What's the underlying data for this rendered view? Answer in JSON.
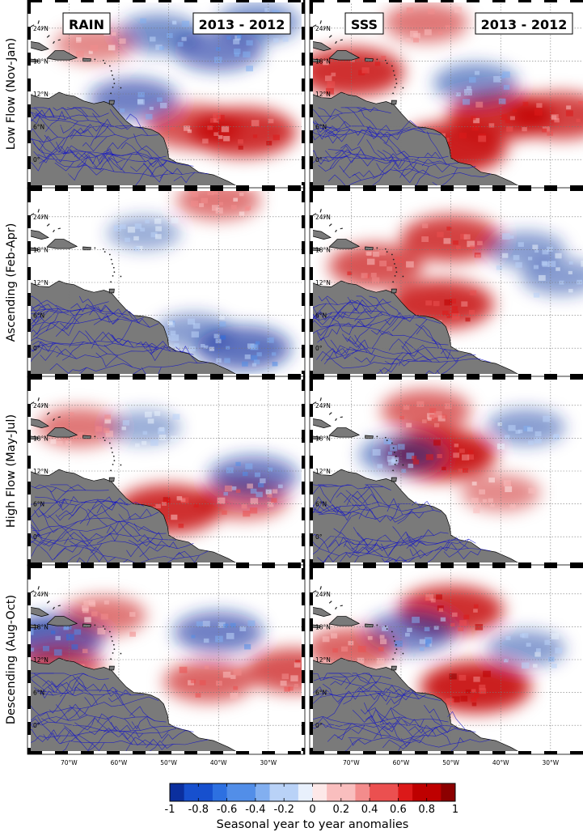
{
  "columns": [
    {
      "label": "RAIN",
      "period": "2013 - 2012"
    },
    {
      "label": "SSS",
      "period": "2013 - 2012"
    }
  ],
  "rows": [
    {
      "label": "Low Flow (Nov-Jan)"
    },
    {
      "label": "Ascending (Feb-Apr)"
    },
    {
      "label": "High Flow (May-Jul)"
    },
    {
      "label": "Descending (Aug-Oct)"
    }
  ],
  "map_axes": {
    "lon_range": [
      -78,
      -23
    ],
    "lat_range": [
      -5,
      29
    ],
    "lat_ticks": [
      {
        "v": 24,
        "label": "24°N"
      },
      {
        "v": 18,
        "label": "18°N"
      },
      {
        "v": 12,
        "label": "12°N"
      },
      {
        "v": 6,
        "label": "6°N"
      },
      {
        "v": 0,
        "label": "0°"
      }
    ],
    "lon_ticks": [
      {
        "v": -70,
        "label": "70°W"
      },
      {
        "v": -60,
        "label": "60°W"
      },
      {
        "v": -50,
        "label": "50°W"
      },
      {
        "v": -40,
        "label": "40°W"
      },
      {
        "v": -30,
        "label": "30°W"
      }
    ]
  },
  "colors": {
    "land": "#7a7a7a",
    "river": "#1414c8",
    "negative": "#0b2f9e",
    "positive": "#c40000"
  },
  "chart_data": {
    "type": "heatmap",
    "colorbar": {
      "min": -1,
      "max": 1,
      "ticks": [
        {
          "v": -1,
          "label": "-1"
        },
        {
          "v": -0.8,
          "label": "-0.8"
        },
        {
          "v": -0.6,
          "label": "-0.6"
        },
        {
          "v": -0.4,
          "label": "-0.4"
        },
        {
          "v": -0.2,
          "label": "-0.2"
        },
        {
          "v": 0,
          "label": "0"
        },
        {
          "v": 0.2,
          "label": "0.2"
        },
        {
          "v": 0.4,
          "label": "0.4"
        },
        {
          "v": 0.6,
          "label": "0.6"
        },
        {
          "v": 0.8,
          "label": "0.8"
        },
        {
          "v": 1,
          "label": "1"
        }
      ],
      "label": "Seasonal year to year anomalies"
    },
    "panels": [
      {
        "row": 0,
        "col": 0,
        "anomalies": [
          {
            "lon": -35,
            "lat": 5,
            "value": 0.8
          },
          {
            "lon": -45,
            "lat": 6,
            "value": 0.6
          },
          {
            "lon": -40,
            "lat": 20,
            "value": -0.5
          },
          {
            "lon": -52,
            "lat": 23,
            "value": -0.4
          },
          {
            "lon": -57,
            "lat": 11,
            "value": -0.5
          },
          {
            "lon": -32,
            "lat": 25,
            "value": -0.4
          },
          {
            "lon": -65,
            "lat": 21,
            "value": 0.3
          }
        ]
      },
      {
        "row": 0,
        "col": 1,
        "anomalies": [
          {
            "lon": -70,
            "lat": 16,
            "value": 0.8
          },
          {
            "lon": -40,
            "lat": 8,
            "value": 0.8
          },
          {
            "lon": -28,
            "lat": 8,
            "value": 0.7
          },
          {
            "lon": -55,
            "lat": 25,
            "value": 0.4
          },
          {
            "lon": -45,
            "lat": 14,
            "value": -0.4
          },
          {
            "lon": -50,
            "lat": 2,
            "value": 0.9
          }
        ]
      },
      {
        "row": 1,
        "col": 0,
        "anomalies": [
          {
            "lon": -40,
            "lat": 27,
            "value": 0.4
          },
          {
            "lon": -35,
            "lat": 0,
            "value": -0.6
          },
          {
            "lon": -45,
            "lat": 3,
            "value": -0.3
          },
          {
            "lon": -55,
            "lat": 21,
            "value": -0.2
          }
        ]
      },
      {
        "row": 1,
        "col": 1,
        "anomalies": [
          {
            "lon": -50,
            "lat": 20,
            "value": 0.7
          },
          {
            "lon": -52,
            "lat": 8,
            "value": 0.8
          },
          {
            "lon": -65,
            "lat": 15,
            "value": 0.6
          },
          {
            "lon": -35,
            "lat": 18,
            "value": -0.3
          },
          {
            "lon": -28,
            "lat": 13,
            "value": -0.3
          }
        ]
      },
      {
        "row": 2,
        "col": 0,
        "anomalies": [
          {
            "lon": -50,
            "lat": 5,
            "value": 0.8
          },
          {
            "lon": -35,
            "lat": 7,
            "value": 0.5
          },
          {
            "lon": -33,
            "lat": 11,
            "value": -0.5
          },
          {
            "lon": -68,
            "lat": 20,
            "value": 0.4
          },
          {
            "lon": -55,
            "lat": 20,
            "value": -0.2
          }
        ]
      },
      {
        "row": 2,
        "col": 1,
        "anomalies": [
          {
            "lon": -52,
            "lat": 15,
            "value": 0.9
          },
          {
            "lon": -55,
            "lat": 23,
            "value": 0.5
          },
          {
            "lon": -60,
            "lat": 15,
            "value": -0.4
          },
          {
            "lon": -35,
            "lat": 20,
            "value": -0.3
          },
          {
            "lon": -40,
            "lat": 8,
            "value": 0.3
          }
        ]
      },
      {
        "row": 3,
        "col": 0,
        "anomalies": [
          {
            "lon": -73,
            "lat": 16,
            "value": -0.7
          },
          {
            "lon": -63,
            "lat": 20,
            "value": 0.4
          },
          {
            "lon": -40,
            "lat": 17,
            "value": -0.5
          },
          {
            "lon": -42,
            "lat": 8,
            "value": 0.5
          },
          {
            "lon": -25,
            "lat": 10,
            "value": 0.6
          },
          {
            "lon": -72,
            "lat": 11,
            "value": 0.5
          }
        ]
      },
      {
        "row": 3,
        "col": 1,
        "anomalies": [
          {
            "lon": -50,
            "lat": 21,
            "value": 0.8
          },
          {
            "lon": -45,
            "lat": 7,
            "value": 0.9
          },
          {
            "lon": -58,
            "lat": 17,
            "value": -0.5
          },
          {
            "lon": -70,
            "lat": 14,
            "value": 0.5
          },
          {
            "lon": -35,
            "lat": 14,
            "value": -0.3
          }
        ]
      }
    ]
  }
}
